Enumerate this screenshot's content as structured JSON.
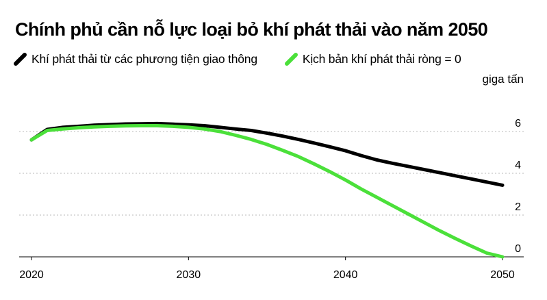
{
  "title": "Chính phủ cần nỗ lực loại bỏ khí phát thải vào năm 2050",
  "legend": [
    {
      "label": "Khí phát thải từ các phương tiện giao thông",
      "color": "#000000"
    },
    {
      "label": "Kịch bản khí phát thải ròng = 0",
      "color": "#4be03a"
    }
  ],
  "unit_label": "giga tấn",
  "chart_data": {
    "type": "line",
    "title": "Chính phủ cần nỗ lực loại bỏ khí phát thải vào năm 2050",
    "xlabel": "",
    "ylabel": "giga tấn",
    "xlim": [
      2020,
      2050
    ],
    "ylim": [
      0,
      6
    ],
    "x_ticks": [
      2020,
      2030,
      2040,
      2050
    ],
    "x_tick_labels": [
      "2020",
      "2030",
      "2040",
      "2050"
    ],
    "y_ticks": [
      0,
      2,
      4,
      6
    ],
    "y_tick_labels": [
      "0",
      "2",
      "4",
      "6"
    ],
    "grid": "horizontal dotted",
    "legend_position": "top-left",
    "series": [
      {
        "name": "Khí phát thải từ các phương tiện giao thông",
        "color": "#000000",
        "x": [
          2020,
          2021,
          2022,
          2023,
          2024,
          2025,
          2026,
          2027,
          2028,
          2029,
          2030,
          2031,
          2032,
          2033,
          2034,
          2035,
          2036,
          2037,
          2038,
          2039,
          2040,
          2041,
          2042,
          2043,
          2044,
          2045,
          2046,
          2047,
          2048,
          2049,
          2050
        ],
        "y": [
          5.6,
          6.1,
          6.2,
          6.25,
          6.3,
          6.33,
          6.36,
          6.37,
          6.38,
          6.35,
          6.32,
          6.28,
          6.2,
          6.12,
          6.05,
          5.92,
          5.78,
          5.62,
          5.45,
          5.27,
          5.08,
          4.85,
          4.64,
          4.48,
          4.33,
          4.18,
          4.03,
          3.88,
          3.73,
          3.58,
          3.43
        ]
      },
      {
        "name": "Kịch bản khí phát thải ròng = 0",
        "color": "#4be03a",
        "x": [
          2020,
          2021,
          2022,
          2023,
          2024,
          2025,
          2026,
          2027,
          2028,
          2029,
          2030,
          2031,
          2032,
          2033,
          2034,
          2035,
          2036,
          2037,
          2038,
          2039,
          2040,
          2041,
          2042,
          2043,
          2044,
          2045,
          2046,
          2047,
          2048,
          2049,
          2050
        ],
        "y": [
          5.6,
          6.05,
          6.12,
          6.18,
          6.22,
          6.25,
          6.27,
          6.28,
          6.28,
          6.25,
          6.2,
          6.12,
          6.0,
          5.82,
          5.62,
          5.38,
          5.1,
          4.8,
          4.45,
          4.08,
          3.68,
          3.25,
          2.85,
          2.45,
          2.05,
          1.65,
          1.25,
          0.88,
          0.52,
          0.18,
          0.0
        ]
      }
    ]
  }
}
